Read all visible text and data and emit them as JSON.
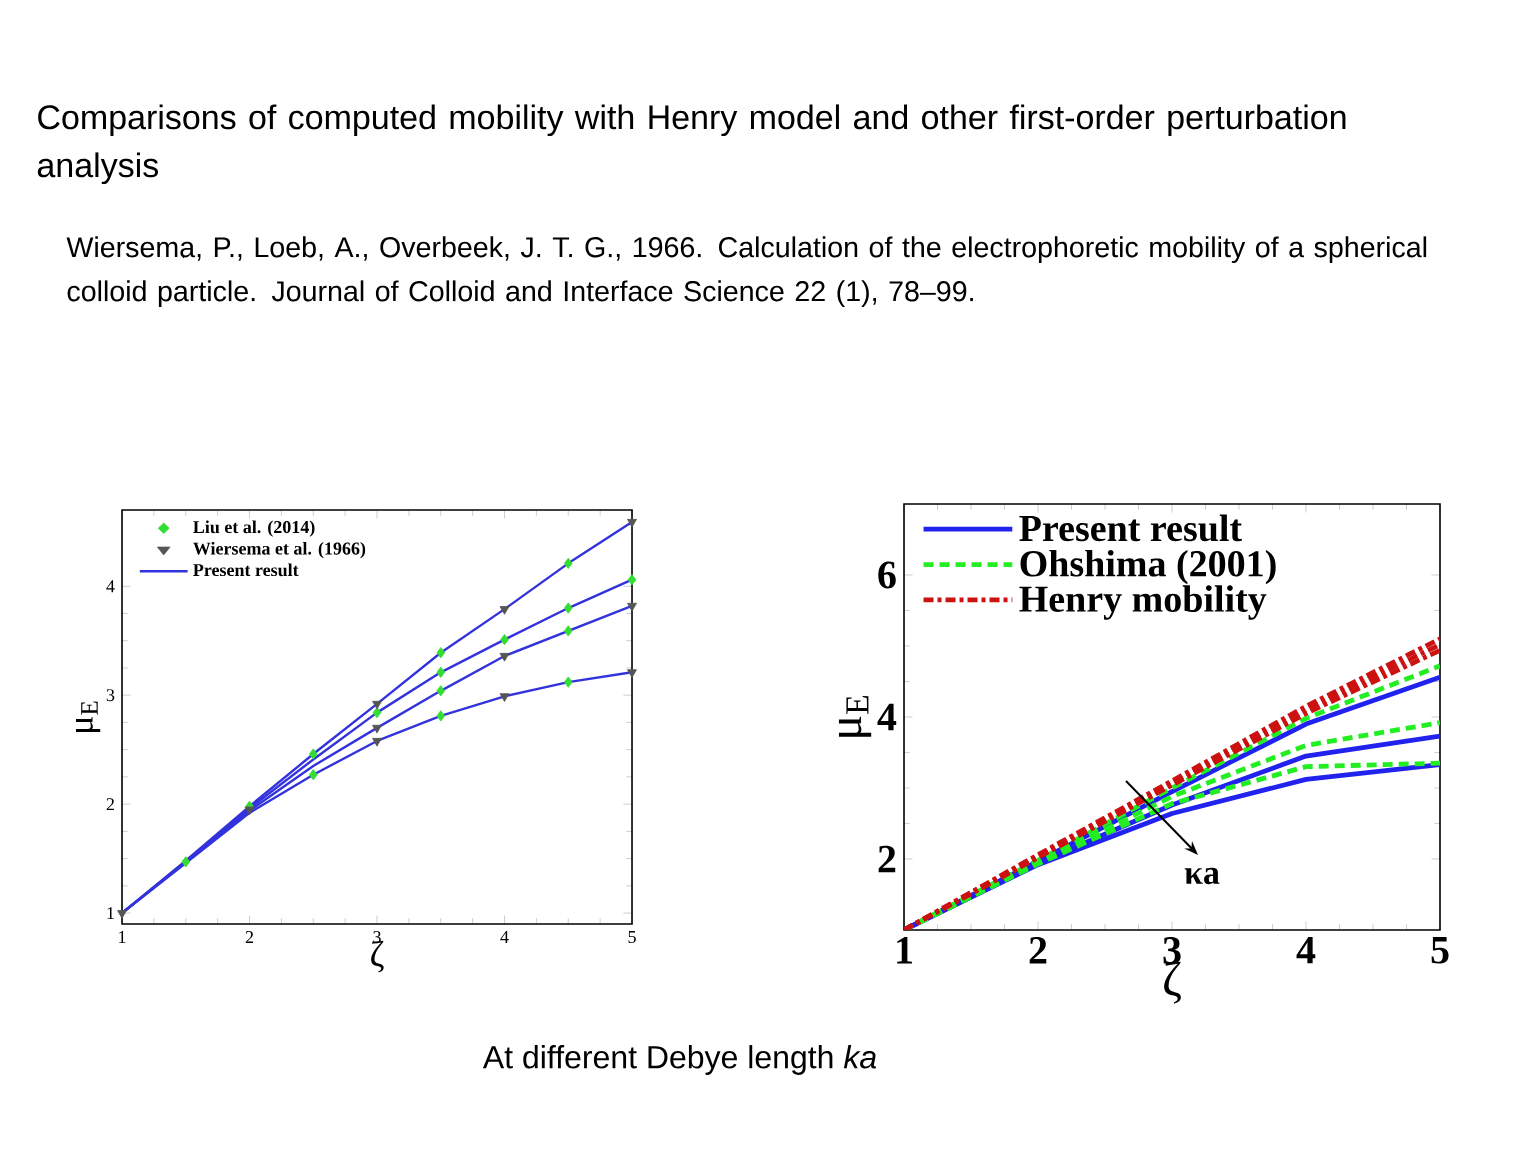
{
  "chart_data": [
    {
      "type": "line",
      "title": "Comparisons of computed mobility with Henry model and other first-order perturbation analysis",
      "subtitle": "Wiersema, P., Loeb, A., Overbeek, J. T. G., 1966. Calculation of the electrophoretic mobility of a spherical colloid particle. Journal of Colloid and Interface Science 22 (1), 78–99.",
      "annotations": [
        "At different Debye length *ka*"
      ],
      "xlabel": "ζ",
      "ylabel": "μ$_{E}$",
      "xlim": [
        1,
        5
      ],
      "ylim": [
        0.9,
        4.7
      ],
      "xticks": [
        1,
        2,
        3,
        4,
        5
      ],
      "yticks": [
        1,
        2,
        3,
        4
      ],
      "legend": "top left",
      "series": [
        {
          "name": "Liu et al. (2014)",
          "type": "scatter",
          "marker": "diamond",
          "color": "#33dd33",
          "x": [
            1.5,
            2,
            2.5,
            2.5,
            3,
            3.5,
            3.5,
            3.5,
            3.5,
            4,
            4.5,
            4.5,
            4.5,
            4.5,
            5
          ],
          "values": [
            1.47,
            1.98,
            2.46,
            2.27,
            2.84,
            3.39,
            3.21,
            3.04,
            2.81,
            3.51,
            4.21,
            3.8,
            3.59,
            3.12,
            4.06
          ]
        },
        {
          "name": "Wiersema et al. (1966)",
          "type": "scatter",
          "marker": "triangle",
          "color": "#555555",
          "x": [
            1,
            2,
            3,
            3,
            3,
            4,
            4,
            4,
            5,
            5,
            5
          ],
          "values": [
            1.0,
            1.95,
            2.92,
            2.7,
            2.58,
            3.79,
            3.36,
            2.99,
            4.59,
            3.82,
            3.21
          ]
        },
        {
          "name": "Present result",
          "color": "#3333dd",
          "x": [
            1,
            1.5,
            2,
            2.5,
            3,
            3.5,
            4,
            4.5,
            5
          ],
          "values": [
            1.0,
            1.48,
            1.98,
            2.46,
            2.92,
            3.39,
            3.79,
            4.21,
            4.59
          ]
        },
        {
          "color": "#3333dd",
          "x": [
            1,
            1.5,
            2,
            2.5,
            3,
            3.5,
            4,
            4.5,
            5
          ],
          "values": [
            1.0,
            1.47,
            1.96,
            2.41,
            2.84,
            3.21,
            3.51,
            3.8,
            4.06
          ]
        },
        {
          "color": "#3333dd",
          "x": [
            1,
            1.5,
            2,
            2.5,
            3,
            3.5,
            4,
            4.5,
            5
          ],
          "values": [
            1.0,
            1.47,
            1.94,
            2.35,
            2.7,
            3.04,
            3.36,
            3.59,
            3.82
          ]
        },
        {
          "color": "#3333dd",
          "x": [
            1,
            1.5,
            2,
            2.5,
            3,
            3.5,
            4,
            4.5,
            5
          ],
          "values": [
            1.0,
            1.46,
            1.92,
            2.27,
            2.58,
            2.81,
            2.99,
            3.12,
            3.21
          ]
        }
      ]
    },
    {
      "type": "line",
      "xlabel": "ζ",
      "ylabel": "μ$_{E}$",
      "xlim": [
        1,
        5
      ],
      "ylim": [
        1,
        7
      ],
      "xticks": [
        1,
        2,
        3,
        4,
        5
      ],
      "yticks": [
        2,
        4,
        6
      ],
      "legend": "top left",
      "x": [
        1,
        2,
        3,
        4,
        5
      ],
      "annotations": [
        "κa"
      ],
      "series": [
        {
          "name": "Present result",
          "color": "#2222ee",
          "line_style": "solid",
          "values": [
            1.0,
            1.97,
            2.95,
            3.9,
            4.56
          ]
        },
        {
          "color": "#2222ee",
          "line_style": "solid",
          "values": [
            1.0,
            1.94,
            2.76,
            3.45,
            3.73
          ]
        },
        {
          "color": "#2222ee",
          "line_style": "solid",
          "values": [
            1.0,
            1.92,
            2.64,
            3.12,
            3.33
          ]
        },
        {
          "name": "Ohshima (2001)",
          "color": "#22ee22",
          "line_style": "dashed",
          "values": [
            1.0,
            1.98,
            3.0,
            3.98,
            4.72
          ]
        },
        {
          "color": "#22ee22",
          "line_style": "dashed",
          "values": [
            1.0,
            1.95,
            2.88,
            3.6,
            3.92
          ]
        },
        {
          "color": "#22ee22",
          "line_style": "dashed",
          "values": [
            1.0,
            1.93,
            2.78,
            3.3,
            3.35
          ]
        },
        {
          "name": "Henry mobility",
          "color": "#cc1111",
          "line_style": "dashdot",
          "values": [
            1.0,
            2.06,
            3.1,
            4.15,
            5.1
          ]
        },
        {
          "color": "#cc1111",
          "line_style": "dashdot",
          "values": [
            1.0,
            2.04,
            3.07,
            4.1,
            5.02
          ]
        },
        {
          "color": "#cc1111",
          "line_style": "dashdot",
          "values": [
            1.0,
            2.02,
            3.04,
            4.05,
            4.94
          ]
        }
      ]
    }
  ]
}
